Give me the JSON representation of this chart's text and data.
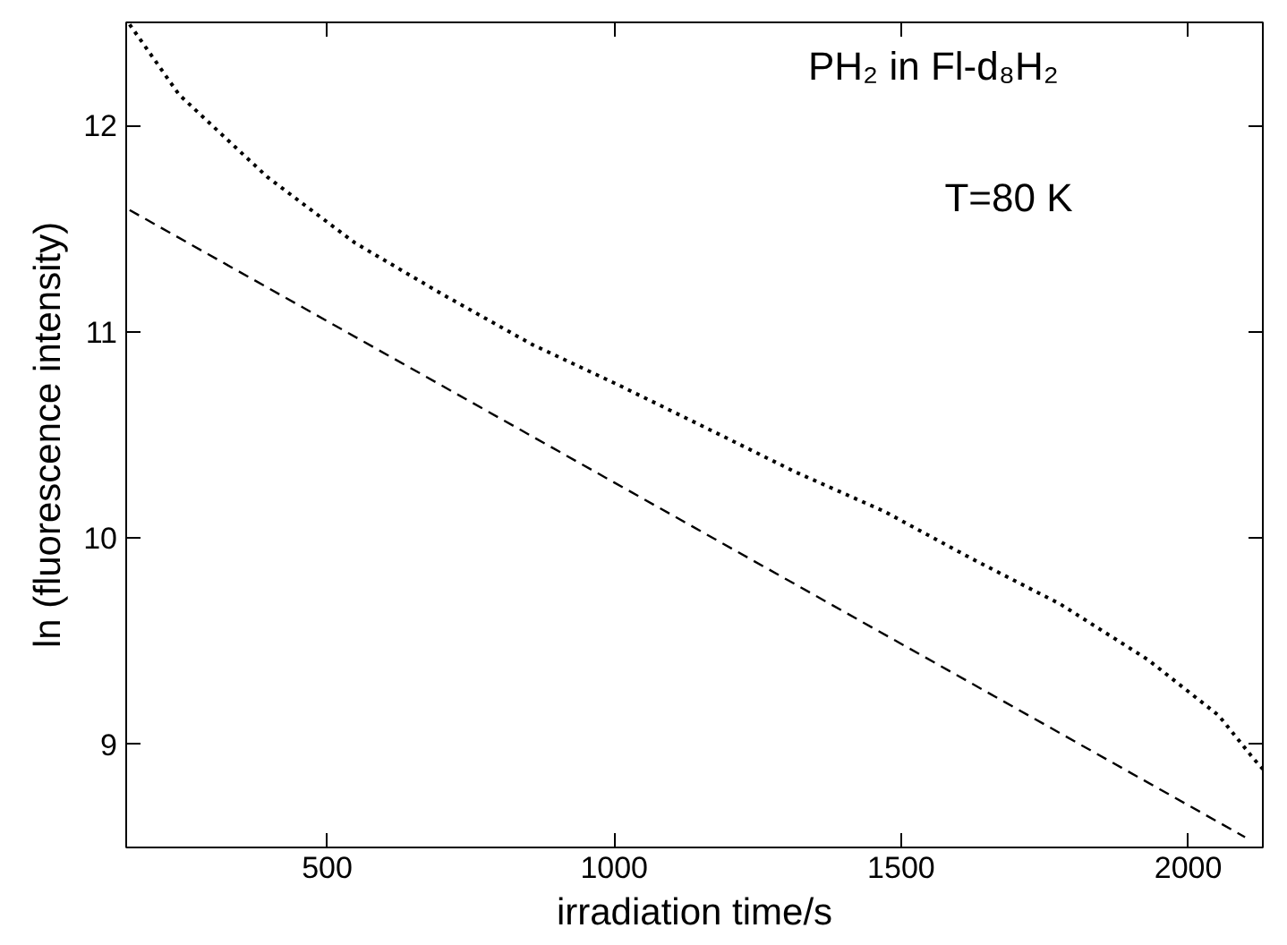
{
  "chart_data": {
    "type": "line",
    "xlabel": "irradiation time/s",
    "ylabel": "ln (fluorescence intensity)",
    "annotations": [
      "PH₂ in Fl-d₈H₂",
      "T=80 K"
    ],
    "xlim": [
      150,
      2130
    ],
    "xticks": [
      500,
      1000,
      1500,
      2000
    ],
    "ylim": [
      8.5,
      12.5
    ],
    "yticks": [
      9,
      10,
      11,
      12
    ],
    "grid": false,
    "series": [
      {
        "color": "#000000",
        "line_style": "dotted",
        "x": [
          156,
          242,
          396,
          549,
          702,
          856,
          1009,
          1163,
          1316,
          1470,
          1623,
          1777,
          1930,
          2053,
          2114,
          2130
        ],
        "values": [
          12.49,
          12.15,
          11.75,
          11.43,
          11.18,
          10.94,
          10.74,
          10.53,
          10.32,
          10.13,
          9.9,
          9.68,
          9.41,
          9.14,
          8.93,
          8.88
        ]
      },
      {
        "color": "#000000",
        "line_style": "dashed",
        "x": [
          156,
          2099
        ],
        "values": [
          11.59,
          8.55
        ]
      }
    ]
  }
}
